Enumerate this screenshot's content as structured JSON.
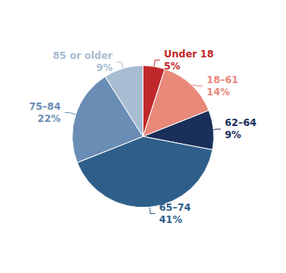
{
  "chart_data": {
    "type": "pie",
    "categories": [
      "Under 18",
      "18–61",
      "62–64",
      "65–74",
      "75–84",
      "85 or older"
    ],
    "values": [
      5,
      14,
      9,
      41,
      22,
      9
    ],
    "value_labels": [
      "5%",
      "14%",
      "9%",
      "41%",
      "22%",
      "9%"
    ],
    "colors": [
      "#c0292b",
      "#e8897a",
      "#1a2f5a",
      "#2e5f8a",
      "#6a8db5",
      "#a8bdd1"
    ],
    "data_labels": true
  }
}
